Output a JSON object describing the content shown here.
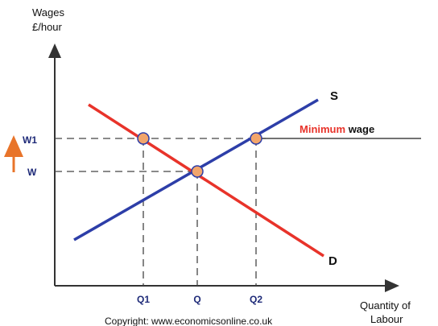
{
  "axes": {
    "y_label": [
      "Wages",
      "£/hour"
    ],
    "x_label": [
      "Quantity of",
      "Labour"
    ]
  },
  "curves": {
    "supply": "S",
    "demand": "D"
  },
  "minimum_wage": {
    "highlight": "Minimum",
    "rest": "wage"
  },
  "wage_levels": [
    "W1",
    "W"
  ],
  "quantity_levels": [
    "Q1",
    "Q",
    "Q2"
  ],
  "copyright": "Copyright: www.economicsonline.co.uk"
}
